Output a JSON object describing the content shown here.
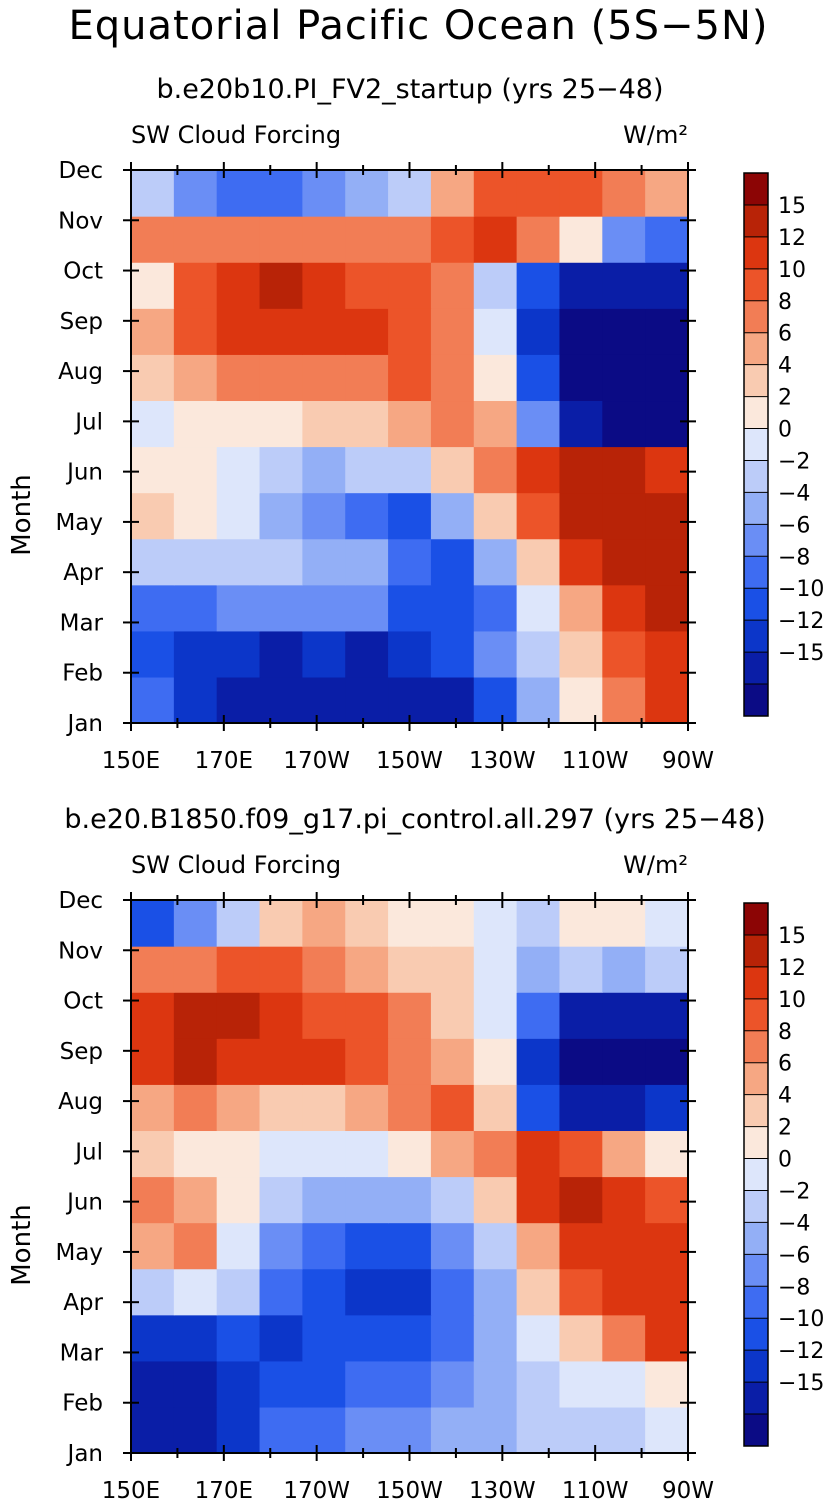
{
  "header": {
    "title": "Equatorial Pacific Ocean (5S−5N)"
  },
  "colorbar": {
    "colors": [
      "#0b0b85",
      "#0a1ea7",
      "#0c36c9",
      "#1a50e6",
      "#3e6cf2",
      "#6a8ef5",
      "#93aff6",
      "#bcccf9",
      "#dde6fb",
      "#fbe8dc",
      "#f9cbb1",
      "#f6a783",
      "#f27d55",
      "#ec5429",
      "#dc3610",
      "#b82307",
      "#8c0505"
    ],
    "levels": [
      "15",
      "12",
      "10",
      "8",
      "6",
      "4",
      "2",
      "0",
      "−2",
      "−4",
      "−6",
      "−8",
      "−10",
      "−12",
      "−15"
    ]
  },
  "panels": [
    {
      "title": "b.e20b10.PI_FV2_startup (yrs 25−48)",
      "left_label": "SW Cloud Forcing",
      "right_label": "W/m²",
      "ylabel": "Month"
    },
    {
      "title": "b.e20.B1850.f09_g17.pi_control.all.297 (yrs 25−48)",
      "left_label": "SW Cloud Forcing",
      "right_label": "W/m²",
      "ylabel": "Month"
    }
  ],
  "chart_data": [
    {
      "type": "heatmap",
      "title": "b.e20b10.PI_FV2_startup (yrs 25−48)",
      "variable": "SW Cloud Forcing",
      "units": "W/m²",
      "xlabel": "",
      "ylabel": "Month",
      "x_tick_labels": [
        "150E",
        "170E",
        "170W",
        "150W",
        "130W",
        "110W",
        "90W"
      ],
      "y_tick_labels": [
        "Jan",
        "Feb",
        "Mar",
        "Apr",
        "May",
        "Jun",
        "Jul",
        "Aug",
        "Sep",
        "Oct",
        "Nov",
        "Dec"
      ],
      "x_lon": [
        150,
        160,
        170,
        180,
        190,
        200,
        210,
        220,
        230,
        240,
        250,
        260,
        270
      ],
      "y_months": [
        "Jan",
        "Feb",
        "Mar",
        "Apr",
        "May",
        "Jun",
        "Jul",
        "Aug",
        "Sep",
        "Oct",
        "Nov",
        "Dec"
      ],
      "values": [
        [
          -8,
          -12,
          -14,
          -14,
          -15,
          -15,
          -14,
          -13,
          -10,
          -4,
          2,
          8,
          12
        ],
        [
          -10,
          -12,
          -12,
          -13,
          -12,
          -13,
          -12,
          -10,
          -6,
          -2,
          4,
          10,
          14
        ],
        [
          -8,
          -8,
          -6,
          -5,
          -6,
          -6,
          -9,
          -10,
          -8,
          0,
          6,
          14,
          16
        ],
        [
          -2,
          -2,
          -1,
          -2,
          -3,
          -4,
          -8,
          -10,
          -4,
          4,
          14,
          16,
          16
        ],
        [
          4,
          2,
          0,
          -3,
          -5,
          -8,
          -9,
          -4,
          4,
          10,
          16,
          17,
          16
        ],
        [
          2,
          2,
          1,
          -2,
          -3,
          -2,
          -1,
          4,
          8,
          12,
          15,
          15,
          13
        ],
        [
          1,
          3,
          3,
          3,
          4,
          5,
          6,
          8,
          6,
          -6,
          -15,
          -16,
          -16
        ],
        [
          5,
          6,
          8,
          8,
          9,
          9,
          10,
          8,
          2,
          -10,
          -17,
          -17,
          -17
        ],
        [
          7,
          10,
          13,
          13,
          14,
          12,
          10,
          9,
          0,
          -12,
          -17,
          -17,
          -17
        ],
        [
          3,
          10,
          14,
          17,
          14,
          11,
          10,
          9,
          -2,
          -10,
          -14,
          -15,
          -15
        ],
        [
          8,
          8,
          8,
          9,
          8,
          9,
          8,
          10,
          12,
          8,
          2,
          -6,
          -8
        ],
        [
          -2,
          -6,
          -8,
          -8,
          -6,
          -4,
          -2,
          6,
          10,
          10,
          10,
          8,
          6
        ]
      ],
      "levels": [
        -15,
        -12,
        -10,
        -8,
        -6,
        -4,
        -2,
        0,
        2,
        4,
        6,
        8,
        10,
        12,
        15
      ]
    },
    {
      "type": "heatmap",
      "title": "b.e20.B1850.f09_g17.pi_control.all.297 (yrs 25−48)",
      "variable": "SW Cloud Forcing",
      "units": "W/m²",
      "xlabel": "",
      "ylabel": "Month",
      "x_tick_labels": [
        "150E",
        "170E",
        "170W",
        "150W",
        "130W",
        "110W",
        "90W"
      ],
      "y_tick_labels": [
        "Jan",
        "Feb",
        "Mar",
        "Apr",
        "May",
        "Jun",
        "Jul",
        "Aug",
        "Sep",
        "Oct",
        "Nov",
        "Dec"
      ],
      "x_lon": [
        150,
        160,
        170,
        180,
        190,
        200,
        210,
        220,
        230,
        240,
        250,
        260,
        270
      ],
      "y_months": [
        "Jan",
        "Feb",
        "Mar",
        "Apr",
        "May",
        "Jun",
        "Jul",
        "Aug",
        "Sep",
        "Oct",
        "Nov",
        "Dec"
      ],
      "values": [
        [
          -15,
          -13,
          -12,
          -8,
          -7,
          -6,
          -5,
          -4,
          -4,
          -2,
          -1,
          -2,
          0
        ],
        [
          -13,
          -13,
          -12,
          -10,
          -9,
          -8,
          -8,
          -6,
          -4,
          -2,
          0,
          0,
          2
        ],
        [
          -12,
          -12,
          -10,
          -11,
          -10,
          -10,
          -9,
          -8,
          -4,
          0,
          4,
          8,
          12
        ],
        [
          -2,
          0,
          -2,
          -8,
          -10,
          -11,
          -12,
          -8,
          -4,
          4,
          10,
          14,
          14
        ],
        [
          6,
          8,
          0,
          -6,
          -8,
          -9,
          -9,
          -6,
          -2,
          6,
          12,
          14,
          12
        ],
        [
          8,
          6,
          2,
          -2,
          -4,
          -4,
          -3,
          -1,
          4,
          12,
          16,
          14,
          10
        ],
        [
          4,
          3,
          2,
          1,
          0,
          0,
          2,
          6,
          8,
          12,
          10,
          6,
          2
        ],
        [
          6,
          8,
          6,
          5,
          5,
          6,
          8,
          10,
          4,
          -10,
          -15,
          -15,
          -12
        ],
        [
          14,
          16,
          14,
          12,
          12,
          10,
          8,
          6,
          2,
          -12,
          -17,
          -17,
          -17
        ],
        [
          12,
          15,
          15,
          12,
          11,
          10,
          8,
          4,
          0,
          -8,
          -14,
          -15,
          -15
        ],
        [
          8,
          9,
          10,
          10,
          9,
          7,
          5,
          4,
          0,
          -4,
          -2,
          -4,
          -2
        ],
        [
          -10,
          -6,
          -2,
          4,
          6,
          4,
          2,
          2,
          0,
          -1,
          2,
          2,
          0
        ]
      ],
      "levels": [
        -15,
        -12,
        -10,
        -8,
        -6,
        -4,
        -2,
        0,
        2,
        4,
        6,
        8,
        10,
        12,
        15
      ]
    }
  ]
}
